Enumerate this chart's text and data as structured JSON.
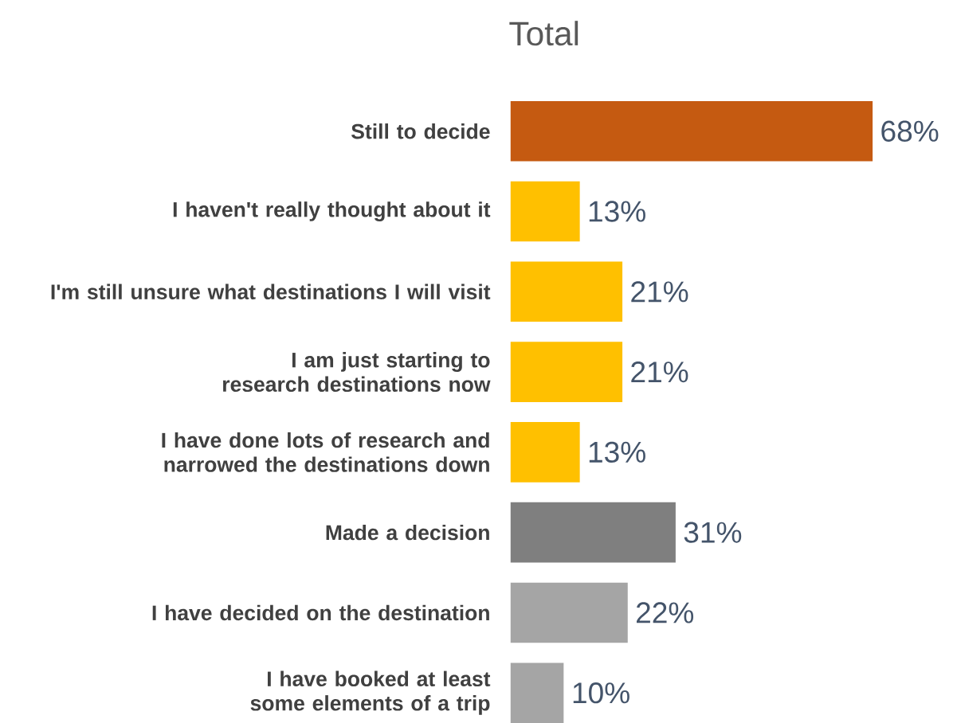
{
  "chart_data": {
    "type": "bar",
    "orientation": "horizontal",
    "title": "Total",
    "categories": [
      "Still to decide",
      "I haven't really thought about it",
      "I'm still unsure what destinations I will visit",
      "I am just starting to research destinations now",
      "I have done lots of research and narrowed the destinations down",
      "Made a decision",
      "I have decided on the destination",
      "I have booked at least some elements of a trip"
    ],
    "values": [
      68,
      13,
      21,
      21,
      13,
      31,
      22,
      10
    ],
    "colors": [
      "#c55a11",
      "#ffc000",
      "#ffc000",
      "#ffc000",
      "#ffc000",
      "#7f7f7f",
      "#a5a5a5",
      "#a5a5a5"
    ],
    "value_labels": [
      "68%",
      "13%",
      "21%",
      "21%",
      "13%",
      "31%",
      "22%",
      "10%"
    ]
  }
}
